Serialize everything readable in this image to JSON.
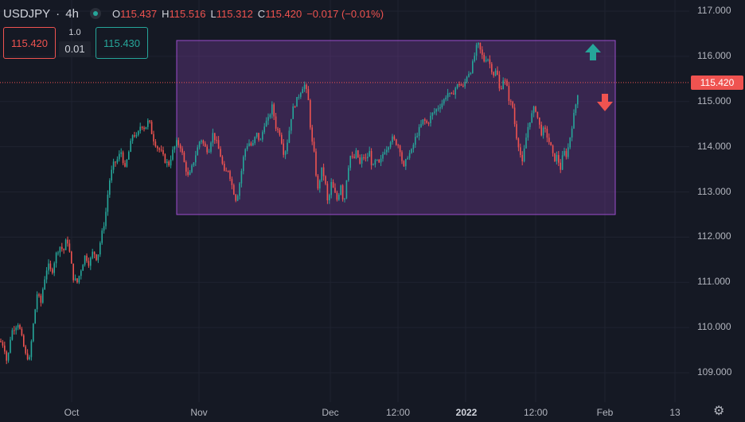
{
  "legend": {
    "symbol": "USDJPY",
    "separator": "·",
    "interval": "4h",
    "o_label": "O",
    "o_value": "115.437",
    "h_label": "H",
    "h_value": "115.516",
    "l_label": "L",
    "l_value": "115.312",
    "c_label": "C",
    "c_value": "115.420",
    "change": "−0.017 (−0.01%)"
  },
  "trade": {
    "sell_price": "115.420",
    "qty_top": "1.0",
    "qty": "0.01",
    "buy_price": "115.430"
  },
  "price_scale": {
    "ticks": [
      "117.000",
      "116.000",
      "115.000",
      "114.000",
      "113.000",
      "112.000",
      "111.000",
      "110.000",
      "109.000"
    ],
    "current_price": "115.420"
  },
  "time_scale": {
    "labels": [
      {
        "text": "Oct",
        "bold": false
      },
      {
        "text": "Nov",
        "bold": false
      },
      {
        "text": "Dec",
        "bold": false
      },
      {
        "text": "12:00",
        "bold": false
      },
      {
        "text": "2022",
        "bold": true
      },
      {
        "text": "12:00",
        "bold": false
      },
      {
        "text": "Feb",
        "bold": false
      },
      {
        "text": "13",
        "bold": false
      }
    ]
  },
  "colors": {
    "up": "#26a69a",
    "down": "#ef5350",
    "range_fill": "#7b3fa0",
    "range_border": "#9c4dcc",
    "grid": "#1f2330"
  },
  "chart_data": {
    "type": "candlestick",
    "instrument": "USDJPY",
    "interval": "4h",
    "ylim": [
      108.5,
      117.2
    ],
    "range_box": {
      "top": 116.35,
      "bottom": 112.5
    },
    "current": 115.42,
    "path": [
      [
        0,
        109.7
      ],
      [
        5,
        109.6
      ],
      [
        9,
        109.2
      ],
      [
        14,
        109.9
      ],
      [
        18,
        110.0
      ],
      [
        23,
        110.1
      ],
      [
        27,
        109.8
      ],
      [
        32,
        109.4
      ],
      [
        37,
        109.3
      ],
      [
        42,
        110.1
      ],
      [
        47,
        110.8
      ],
      [
        51,
        110.5
      ],
      [
        55,
        111.0
      ],
      [
        60,
        111.4
      ],
      [
        65,
        111.2
      ],
      [
        70,
        111.6
      ],
      [
        75,
        111.8
      ],
      [
        80,
        111.7
      ],
      [
        84,
        112.0
      ],
      [
        88,
        111.6
      ],
      [
        92,
        111.1
      ],
      [
        97,
        111.0
      ],
      [
        102,
        111.3
      ],
      [
        107,
        111.6
      ],
      [
        112,
        111.4
      ],
      [
        117,
        111.7
      ],
      [
        122,
        111.5
      ],
      [
        127,
        112.0
      ],
      [
        132,
        112.4
      ],
      [
        137,
        113.2
      ],
      [
        142,
        113.6
      ],
      [
        147,
        113.7
      ],
      [
        152,
        113.9
      ],
      [
        157,
        113.5
      ],
      [
        162,
        113.9
      ],
      [
        167,
        114.3
      ],
      [
        172,
        114.2
      ],
      [
        177,
        114.5
      ],
      [
        182,
        114.4
      ],
      [
        187,
        114.6
      ],
      [
        192,
        114.2
      ],
      [
        197,
        114.0
      ],
      [
        202,
        113.9
      ],
      [
        207,
        113.7
      ],
      [
        212,
        113.6
      ],
      [
        217,
        113.9
      ],
      [
        222,
        114.1
      ],
      [
        227,
        114.0
      ],
      [
        232,
        113.6
      ],
      [
        237,
        113.3
      ],
      [
        242,
        113.6
      ],
      [
        247,
        113.9
      ],
      [
        252,
        114.2
      ],
      [
        257,
        114.0
      ],
      [
        262,
        113.9
      ],
      [
        267,
        114.3
      ],
      [
        272,
        114.1
      ],
      [
        277,
        113.8
      ],
      [
        282,
        113.4
      ],
      [
        287,
        113.5
      ],
      [
        292,
        113.1
      ],
      [
        297,
        112.8
      ],
      [
        302,
        113.3
      ],
      [
        307,
        113.9
      ],
      [
        312,
        114.1
      ],
      [
        317,
        114.0
      ],
      [
        322,
        114.3
      ],
      [
        327,
        114.1
      ],
      [
        332,
        114.5
      ],
      [
        337,
        114.6
      ],
      [
        342,
        114.9
      ],
      [
        347,
        114.4
      ],
      [
        352,
        114.3
      ],
      [
        357,
        113.8
      ],
      [
        362,
        114.2
      ],
      [
        367,
        114.8
      ],
      [
        372,
        115.0
      ],
      [
        377,
        115.2
      ],
      [
        382,
        115.4
      ],
      [
        387,
        115.1
      ],
      [
        391,
        114.2
      ],
      [
        395,
        113.8
      ],
      [
        399,
        113.0
      ],
      [
        404,
        113.5
      ],
      [
        408,
        113.3
      ],
      [
        412,
        112.7
      ],
      [
        416,
        113.2
      ],
      [
        420,
        113.0
      ],
      [
        424,
        112.8
      ],
      [
        428,
        113.2
      ],
      [
        432,
        112.7
      ],
      [
        436,
        113.4
      ],
      [
        440,
        113.8
      ],
      [
        444,
        113.7
      ],
      [
        448,
        113.9
      ],
      [
        452,
        113.6
      ],
      [
        456,
        113.8
      ],
      [
        460,
        113.7
      ],
      [
        464,
        113.9
      ],
      [
        468,
        113.5
      ],
      [
        472,
        113.7
      ],
      [
        477,
        113.6
      ],
      [
        482,
        113.9
      ],
      [
        487,
        114.0
      ],
      [
        492,
        114.2
      ],
      [
        497,
        114.1
      ],
      [
        502,
        114.0
      ],
      [
        507,
        113.5
      ],
      [
        512,
        113.8
      ],
      [
        517,
        113.9
      ],
      [
        522,
        114.2
      ],
      [
        527,
        114.4
      ],
      [
        532,
        114.6
      ],
      [
        537,
        114.5
      ],
      [
        542,
        114.7
      ],
      [
        547,
        114.8
      ],
      [
        552,
        114.9
      ],
      [
        557,
        115.0
      ],
      [
        562,
        115.2
      ],
      [
        567,
        115.1
      ],
      [
        572,
        115.3
      ],
      [
        577,
        115.4
      ],
      [
        582,
        115.3
      ],
      [
        587,
        115.6
      ],
      [
        592,
        115.7
      ],
      [
        596,
        116.0
      ],
      [
        600,
        116.3
      ],
      [
        604,
        116.1
      ],
      [
        608,
        115.9
      ],
      [
        612,
        116.0
      ],
      [
        616,
        115.8
      ],
      [
        620,
        115.6
      ],
      [
        624,
        115.7
      ],
      [
        628,
        115.2
      ],
      [
        632,
        115.5
      ],
      [
        636,
        115.4
      ],
      [
        640,
        115.0
      ],
      [
        644,
        114.9
      ],
      [
        648,
        114.3
      ],
      [
        652,
        114.0
      ],
      [
        656,
        113.6
      ],
      [
        660,
        114.1
      ],
      [
        664,
        114.5
      ],
      [
        668,
        114.7
      ],
      [
        672,
        114.9
      ],
      [
        676,
        114.6
      ],
      [
        680,
        114.3
      ],
      [
        684,
        114.4
      ],
      [
        688,
        114.2
      ],
      [
        692,
        114.0
      ],
      [
        696,
        113.7
      ],
      [
        700,
        113.8
      ],
      [
        704,
        113.5
      ],
      [
        708,
        113.9
      ],
      [
        712,
        113.8
      ],
      [
        716,
        114.2
      ],
      [
        720,
        114.6
      ],
      [
        724,
        115.0
      ],
      [
        728,
        115.42
      ]
    ]
  }
}
